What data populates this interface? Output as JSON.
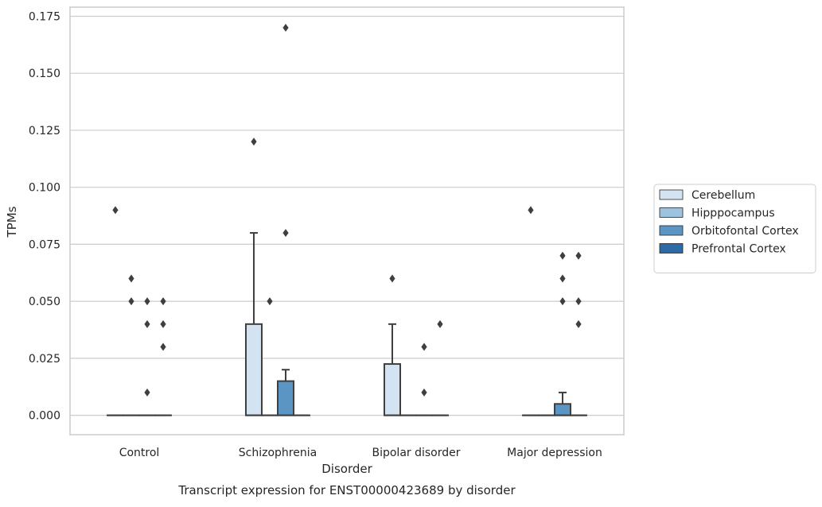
{
  "chart_data": {
    "type": "box",
    "title": "",
    "caption": "Transcript expression for ENST00000423689 by disorder",
    "xlabel": "Disorder",
    "ylabel": "TPMs",
    "ylim": [
      -0.0085,
      0.179
    ],
    "y_ticks": [
      0.0,
      0.025,
      0.05,
      0.075,
      0.1,
      0.125,
      0.15,
      0.175
    ],
    "y_tick_labels": [
      "0.000",
      "0.025",
      "0.050",
      "0.075",
      "0.100",
      "0.125",
      "0.150",
      "0.175"
    ],
    "grid": true,
    "legend_position": "right",
    "categories": [
      "Control",
      "Schizophrenia",
      "Bipolar disorder",
      "Major depression"
    ],
    "series": [
      {
        "name": "Cerebellum",
        "color": "#d4e3f2",
        "boxes": [
          {
            "q1": 0,
            "median": 0,
            "q3": 0,
            "whisker_low": 0,
            "whisker_high": 0,
            "outliers": [
              0.09
            ]
          },
          {
            "q1": 0,
            "median": 0,
            "q3": 0.04,
            "whisker_low": 0,
            "whisker_high": 0.08,
            "outliers": [
              0.12
            ]
          },
          {
            "q1": 0,
            "median": 0,
            "q3": 0.0225,
            "whisker_low": 0,
            "whisker_high": 0.04,
            "outliers": [
              0.06
            ]
          },
          {
            "q1": 0,
            "median": 0,
            "q3": 0,
            "whisker_low": 0,
            "whisker_high": 0,
            "outliers": [
              0.09
            ]
          }
        ]
      },
      {
        "name": "Hipppocampus",
        "color": "#9dc3de",
        "boxes": [
          {
            "q1": 0,
            "median": 0,
            "q3": 0,
            "whisker_low": 0,
            "whisker_high": 0,
            "outliers": [
              0.06,
              0.05
            ]
          },
          {
            "q1": 0,
            "median": 0,
            "q3": 0,
            "whisker_low": 0,
            "whisker_high": 0,
            "outliers": [
              0.05
            ]
          },
          {
            "q1": 0,
            "median": 0,
            "q3": 0,
            "whisker_low": 0,
            "whisker_high": 0,
            "outliers": []
          },
          {
            "q1": 0,
            "median": 0,
            "q3": 0,
            "whisker_low": 0,
            "whisker_high": 0,
            "outliers": []
          }
        ]
      },
      {
        "name": "Orbitofontal Cortex",
        "color": "#5a95c3",
        "boxes": [
          {
            "q1": 0,
            "median": 0,
            "q3": 0,
            "whisker_low": 0,
            "whisker_high": 0,
            "outliers": [
              0.05,
              0.04,
              0.01
            ]
          },
          {
            "q1": 0,
            "median": 0,
            "q3": 0.015,
            "whisker_low": 0,
            "whisker_high": 0.02,
            "outliers": [
              0.17,
              0.08
            ]
          },
          {
            "q1": 0,
            "median": 0,
            "q3": 0,
            "whisker_low": 0,
            "whisker_high": 0,
            "outliers": [
              0.03,
              0.01
            ]
          },
          {
            "q1": 0,
            "median": 0,
            "q3": 0.005,
            "whisker_low": 0,
            "whisker_high": 0.01,
            "outliers": [
              0.07,
              0.06,
              0.05
            ]
          }
        ]
      },
      {
        "name": "Prefrontal Cortex",
        "color": "#2c6aa8",
        "boxes": [
          {
            "q1": 0,
            "median": 0,
            "q3": 0,
            "whisker_low": 0,
            "whisker_high": 0,
            "outliers": [
              0.05,
              0.04,
              0.03
            ]
          },
          {
            "q1": 0,
            "median": 0,
            "q3": 0,
            "whisker_low": 0,
            "whisker_high": 0,
            "outliers": []
          },
          {
            "q1": 0,
            "median": 0,
            "q3": 0,
            "whisker_low": 0,
            "whisker_high": 0,
            "outliers": [
              0.04
            ]
          },
          {
            "q1": 0,
            "median": 0,
            "q3": 0,
            "whisker_low": 0,
            "whisker_high": 0,
            "outliers": [
              0.07,
              0.05,
              0.04
            ]
          }
        ]
      }
    ]
  }
}
